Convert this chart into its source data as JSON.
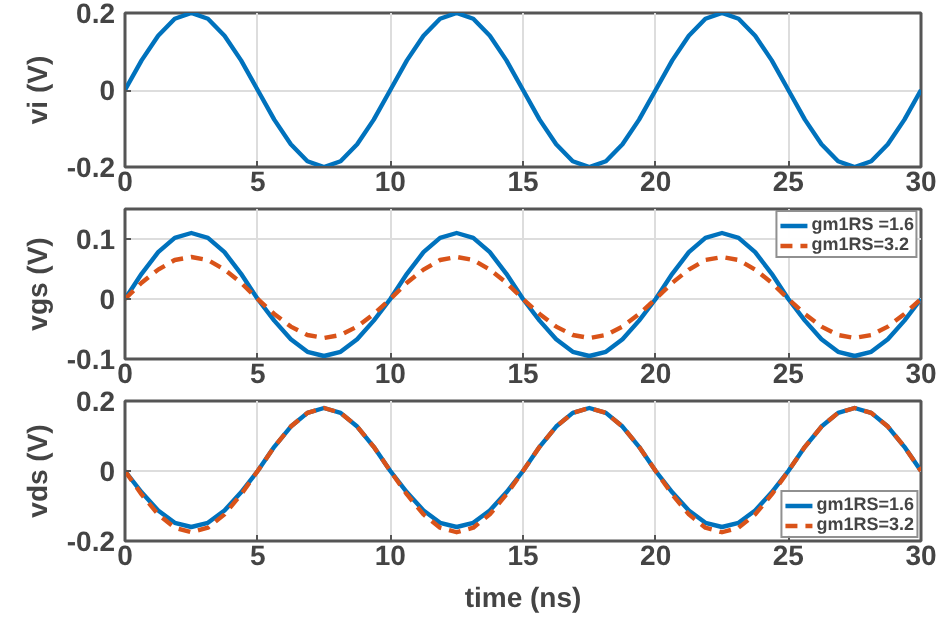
{
  "chart_data": [
    {
      "type": "line",
      "ylabel": "vi (V)",
      "x": [
        0,
        0.625,
        1.25,
        1.875,
        2.5,
        3.125,
        3.75,
        4.375,
        5,
        5.625,
        6.25,
        6.875,
        7.5,
        8.125,
        8.75,
        9.375,
        10,
        10.625,
        11.25,
        11.875,
        12.5,
        13.125,
        13.75,
        14.375,
        15,
        15.625,
        16.25,
        16.875,
        17.5,
        18.125,
        18.75,
        19.375,
        20,
        20.625,
        21.25,
        21.875,
        22.5,
        23.125,
        23.75,
        24.375,
        25,
        25.625,
        26.25,
        26.875,
        27.5,
        28.125,
        28.75,
        29.375,
        30
      ],
      "xlim": [
        0,
        30
      ],
      "xticks": [
        0,
        5,
        10,
        15,
        20,
        25,
        30
      ],
      "ylim": [
        -0.2,
        0.2
      ],
      "yticks": [
        -0.2,
        0,
        0.2
      ],
      "grid": true,
      "series": [
        {
          "color": "#0072bd",
          "line_style": "solid",
          "values": [
            0,
            0.077,
            0.141,
            0.185,
            0.2,
            0.185,
            0.141,
            0.077,
            0,
            -0.077,
            -0.141,
            -0.185,
            -0.2,
            -0.185,
            -0.141,
            -0.077,
            0,
            0.077,
            0.141,
            0.185,
            0.2,
            0.185,
            0.141,
            0.077,
            0,
            -0.077,
            -0.141,
            -0.185,
            -0.2,
            -0.185,
            -0.141,
            -0.077,
            0,
            0.077,
            0.141,
            0.185,
            0.2,
            0.185,
            0.141,
            0.077,
            0,
            -0.077,
            -0.141,
            -0.185,
            -0.2,
            -0.185,
            -0.141,
            -0.077,
            0
          ]
        }
      ]
    },
    {
      "type": "line",
      "ylabel": "vgs (V)",
      "x": [
        0,
        0.625,
        1.25,
        1.875,
        2.5,
        3.125,
        3.75,
        4.375,
        5,
        5.625,
        6.25,
        6.875,
        7.5,
        8.125,
        8.75,
        9.375,
        10,
        10.625,
        11.25,
        11.875,
        12.5,
        13.125,
        13.75,
        14.375,
        15,
        15.625,
        16.25,
        16.875,
        17.5,
        18.125,
        18.75,
        19.375,
        20,
        20.625,
        21.25,
        21.875,
        22.5,
        23.125,
        23.75,
        24.375,
        25,
        25.625,
        26.25,
        26.875,
        27.5,
        28.125,
        28.75,
        29.375,
        30
      ],
      "xlim": [
        0,
        30
      ],
      "xticks": [
        0,
        5,
        10,
        15,
        20,
        25,
        30
      ],
      "ylim": [
        -0.1,
        0.15
      ],
      "yticks": [
        -0.1,
        0,
        0.1
      ],
      "grid": true,
      "legend": "top right",
      "series": [
        {
          "name": "gm1RS =1.6",
          "color": "#0072bd",
          "line_style": "solid",
          "values": [
            0,
            0.042,
            0.078,
            0.102,
            0.11,
            0.102,
            0.078,
            0.042,
            0,
            -0.036,
            -0.067,
            -0.088,
            -0.095,
            -0.088,
            -0.067,
            -0.036,
            0,
            0.042,
            0.078,
            0.102,
            0.11,
            0.102,
            0.078,
            0.042,
            0,
            -0.036,
            -0.067,
            -0.088,
            -0.095,
            -0.088,
            -0.067,
            -0.036,
            0,
            0.042,
            0.078,
            0.102,
            0.11,
            0.102,
            0.078,
            0.042,
            0,
            -0.036,
            -0.067,
            -0.088,
            -0.095,
            -0.088,
            -0.067,
            -0.036,
            0
          ]
        },
        {
          "name": "gm1RS=3.2",
          "color": "#d95319",
          "line_style": "dashed",
          "values": [
            0,
            0.027,
            0.049,
            0.065,
            0.07,
            0.065,
            0.049,
            0.027,
            0,
            -0.025,
            -0.046,
            -0.06,
            -0.065,
            -0.06,
            -0.046,
            -0.025,
            0,
            0.027,
            0.049,
            0.065,
            0.07,
            0.065,
            0.049,
            0.027,
            0,
            -0.025,
            -0.046,
            -0.06,
            -0.065,
            -0.06,
            -0.046,
            -0.025,
            0,
            0.027,
            0.049,
            0.065,
            0.07,
            0.065,
            0.049,
            0.027,
            0,
            -0.025,
            -0.046,
            -0.06,
            -0.065,
            -0.06,
            -0.046,
            -0.025,
            0
          ]
        }
      ]
    },
    {
      "type": "line",
      "xlabel": "time (ns)",
      "ylabel": "vds (V)",
      "x": [
        0,
        0.625,
        1.25,
        1.875,
        2.5,
        3.125,
        3.75,
        4.375,
        5,
        5.625,
        6.25,
        6.875,
        7.5,
        8.125,
        8.75,
        9.375,
        10,
        10.625,
        11.25,
        11.875,
        12.5,
        13.125,
        13.75,
        14.375,
        15,
        15.625,
        16.25,
        16.875,
        17.5,
        18.125,
        18.75,
        19.375,
        20,
        20.625,
        21.25,
        21.875,
        22.5,
        23.125,
        23.75,
        24.375,
        25,
        25.625,
        26.25,
        26.875,
        27.5,
        28.125,
        28.75,
        29.375,
        30
      ],
      "xlim": [
        0,
        30
      ],
      "xticks": [
        0,
        5,
        10,
        15,
        20,
        25,
        30
      ],
      "ylim": [
        -0.2,
        0.2
      ],
      "yticks": [
        -0.2,
        0,
        0.2
      ],
      "grid": true,
      "legend": "bottom right",
      "series": [
        {
          "name": "gm1RS=1.6",
          "color": "#0072bd",
          "line_style": "solid",
          "values": [
            0,
            -0.061,
            -0.113,
            -0.148,
            -0.16,
            -0.148,
            -0.113,
            -0.061,
            0,
            0.069,
            0.127,
            0.166,
            0.18,
            0.166,
            0.127,
            0.069,
            0,
            -0.061,
            -0.113,
            -0.148,
            -0.16,
            -0.148,
            -0.113,
            -0.061,
            0,
            0.069,
            0.127,
            0.166,
            0.18,
            0.166,
            0.127,
            0.069,
            0,
            -0.061,
            -0.113,
            -0.148,
            -0.16,
            -0.148,
            -0.113,
            -0.061,
            0,
            0.069,
            0.127,
            0.166,
            0.18,
            0.166,
            0.127,
            0.069,
            0
          ]
        },
        {
          "name": "gm1RS=3.2",
          "color": "#d95319",
          "line_style": "dashed",
          "values": [
            0,
            -0.067,
            -0.124,
            -0.162,
            -0.175,
            -0.162,
            -0.124,
            -0.067,
            0,
            0.069,
            0.127,
            0.166,
            0.18,
            0.166,
            0.127,
            0.069,
            0,
            -0.067,
            -0.124,
            -0.162,
            -0.175,
            -0.162,
            -0.124,
            -0.067,
            0,
            0.069,
            0.127,
            0.166,
            0.18,
            0.166,
            0.127,
            0.069,
            0,
            -0.067,
            -0.124,
            -0.162,
            -0.175,
            -0.162,
            -0.124,
            -0.067,
            0,
            0.069,
            0.127,
            0.166,
            0.18,
            0.166,
            0.127,
            0.069,
            0
          ]
        }
      ]
    }
  ]
}
